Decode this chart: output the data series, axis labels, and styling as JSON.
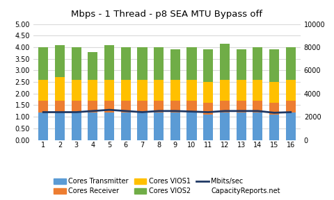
{
  "title": "Mbps - 1 Thread - p8 SEA MTU Bypass off",
  "x_labels": [
    1,
    2,
    3,
    4,
    5,
    6,
    7,
    8,
    9,
    10,
    11,
    12,
    13,
    14,
    15,
    16
  ],
  "cores_transmitter": [
    1.2,
    1.2,
    1.2,
    1.2,
    1.2,
    1.2,
    1.2,
    1.2,
    1.2,
    1.2,
    1.1,
    1.2,
    1.2,
    1.2,
    1.1,
    1.2
  ],
  "cores_receiver": [
    0.5,
    0.5,
    0.5,
    0.5,
    0.5,
    0.5,
    0.5,
    0.5,
    0.5,
    0.5,
    0.5,
    0.5,
    0.5,
    0.5,
    0.5,
    0.5
  ],
  "cores_vios1": [
    0.9,
    1.0,
    0.9,
    0.9,
    0.9,
    0.9,
    0.9,
    0.9,
    0.9,
    0.9,
    0.9,
    0.9,
    0.9,
    0.9,
    0.9,
    0.9
  ],
  "cores_vios2": [
    1.4,
    1.4,
    1.4,
    1.2,
    1.5,
    1.4,
    1.4,
    1.4,
    1.3,
    1.4,
    1.4,
    1.55,
    1.3,
    1.4,
    1.4,
    1.4
  ],
  "mbps_sec": [
    2400,
    2400,
    2400,
    2500,
    2600,
    2500,
    2400,
    2500,
    2500,
    2450,
    2400,
    2500,
    2500,
    2500,
    2350,
    2400
  ],
  "color_transmitter": "#5B9BD5",
  "color_receiver": "#ED7D31",
  "color_vios1": "#FFC000",
  "color_vios2": "#70AD47",
  "color_mbps": "#1F3864",
  "ylim_left": [
    0.0,
    5.0
  ],
  "ylim_right": [
    0,
    10000
  ],
  "yticks_left": [
    0.0,
    0.5,
    1.0,
    1.5,
    2.0,
    2.5,
    3.0,
    3.5,
    4.0,
    4.5,
    5.0
  ],
  "yticks_right": [
    0,
    2000,
    4000,
    6000,
    8000,
    10000
  ],
  "legend_labels": [
    "Cores Transmitter",
    "Cores Receiver",
    "Cores VIOS1",
    "Cores VIOS2",
    "Mbits/sec",
    "CapacityReports.net"
  ],
  "background_color": "#FFFFFF",
  "grid_color": "#D9D9D9"
}
